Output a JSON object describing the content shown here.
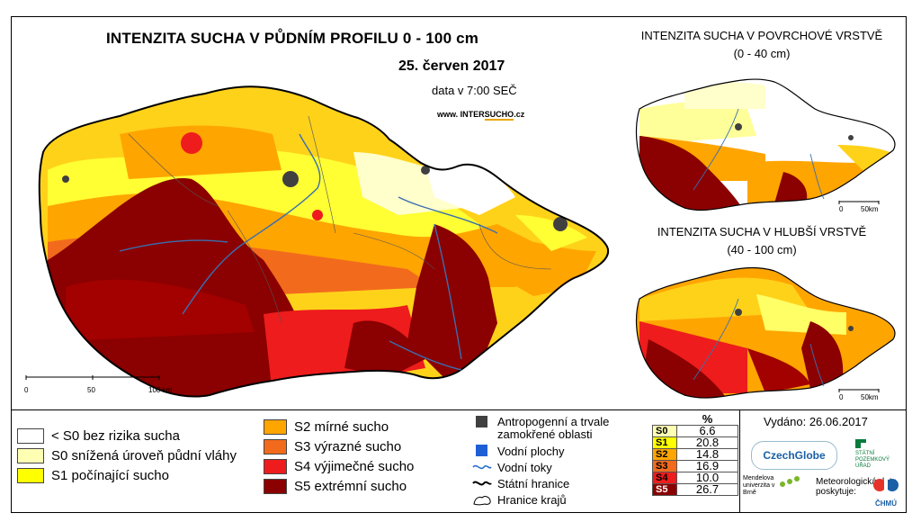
{
  "main_map": {
    "title": "INTENZITA SUCHA V PŮDNÍM PROFILU 0 - 100 cm",
    "date": "25. červen 2017",
    "data_time": "data v 7:00 SEČ",
    "website_prefix": "www. INTER",
    "website_highlight": "SUCHO",
    "website_suffix": ".cz",
    "scale_labels": [
      "0",
      "50",
      "100 km"
    ]
  },
  "surface_map": {
    "title": "INTENZITA SUCHA V POVRCHOVÉ VRSTVĚ",
    "range": "(0 - 40 cm)",
    "scale_labels": [
      "0",
      "50km"
    ]
  },
  "deep_map": {
    "title": "INTENZITA SUCHA V HLUBŠÍ VRSTVĚ",
    "range": "(40 - 100 cm)",
    "scale_labels": [
      "0",
      "50km"
    ]
  },
  "legend": {
    "classes": [
      {
        "code": "<S0",
        "label": "< S0 bez rizika sucha",
        "color": "#ffffff"
      },
      {
        "code": "S0",
        "label": "S0 snížená úroveň půdní vláhy",
        "color": "#ffffb4"
      },
      {
        "code": "S1",
        "label": "S1 počínající sucho",
        "color": "#ffff00"
      },
      {
        "code": "S2",
        "label": "S2 mírné sucho",
        "color": "#ffa500"
      },
      {
        "code": "S3",
        "label": "S3 výrazné sucho",
        "color": "#f26b1d"
      },
      {
        "code": "S4",
        "label": "S4 výjimečné sucho",
        "color": "#ee1c1c"
      },
      {
        "code": "S5",
        "label": "S5 extrémní sucho",
        "color": "#8b0000"
      }
    ],
    "symbols": [
      {
        "label": "Antropogenní a trvale zamokřené oblasti",
        "icon": "dark-square",
        "color": "#404040"
      },
      {
        "label": "Vodní plochy",
        "icon": "blue-square",
        "color": "#1f5fd6"
      },
      {
        "label": "Vodní toky",
        "icon": "wavy-line",
        "color": "#2a6fd0"
      },
      {
        "label": "Státní hranice",
        "icon": "bold-wavy-line",
        "color": "#000000"
      },
      {
        "label": "Hranice krajů",
        "icon": "region-outline",
        "color": "#000000"
      }
    ],
    "percent_header": "%",
    "percentages": [
      {
        "code": "S0",
        "value": "6.6",
        "color": "#ffffb4"
      },
      {
        "code": "S1",
        "value": "20.8",
        "color": "#ffff00"
      },
      {
        "code": "S2",
        "value": "14.8",
        "color": "#ffa500"
      },
      {
        "code": "S3",
        "value": "16.9",
        "color": "#f26b1d"
      },
      {
        "code": "S4",
        "value": "10.0",
        "color": "#ee1c1c"
      },
      {
        "code": "S5",
        "value": "26.7",
        "color": "#8b0000"
      }
    ]
  },
  "issued": "Vydáno: 26.06.2017",
  "logos": {
    "czechglobe": "CzechGlobe",
    "spu": "STÁTNÍ POZEMKOVÝ ÚŘAD",
    "mendel": "Mendelova univerzita v Brně",
    "meteo": "Meteorologická data poskytuje:",
    "chmu": "ČHMÚ"
  }
}
